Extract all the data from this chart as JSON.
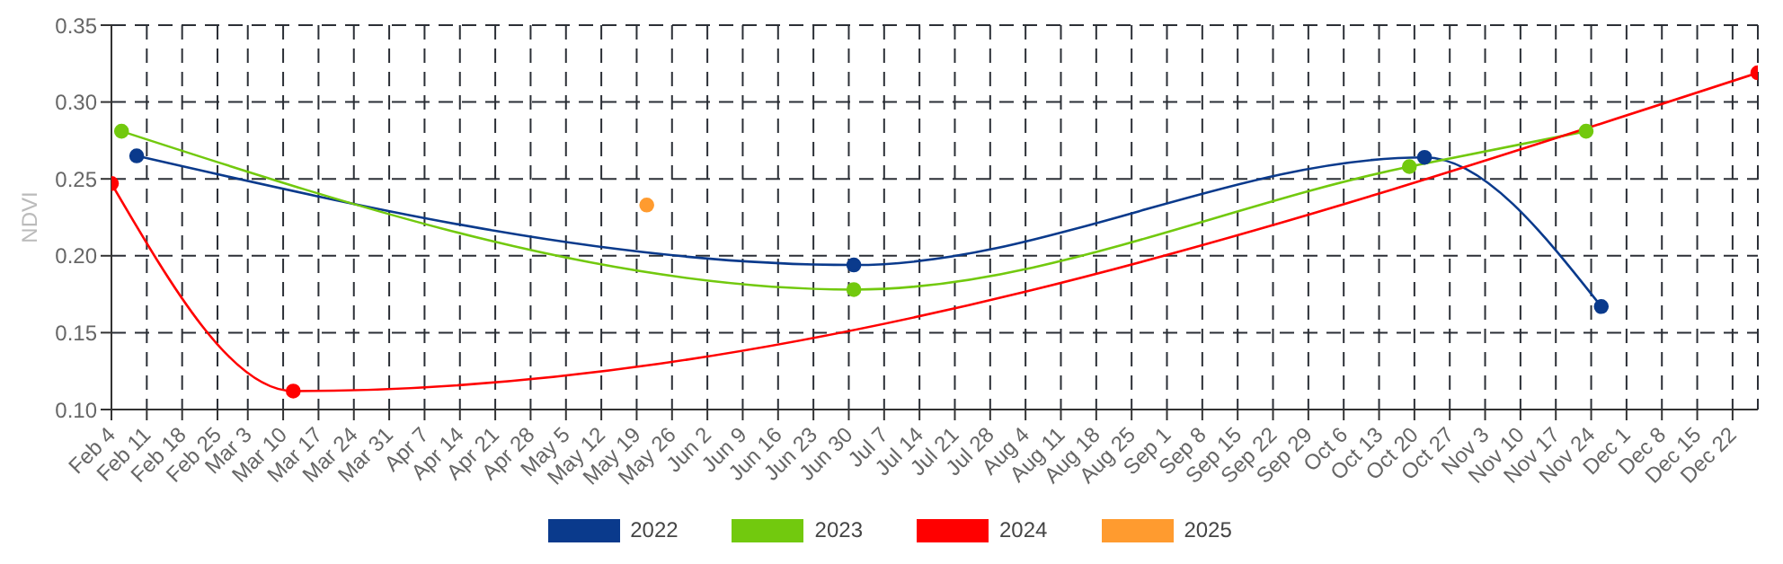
{
  "chart_data": {
    "type": "line",
    "ylabel": "NDVI",
    "xlim": [
      "--02-04",
      "--12-27"
    ],
    "xticks": [
      {
        "value": "--02-04",
        "label": "Feb 4"
      },
      {
        "value": "--02-11",
        "label": "Feb 11"
      },
      {
        "value": "--02-18",
        "label": "Feb 18"
      },
      {
        "value": "--02-25",
        "label": "Feb 25"
      },
      {
        "value": "--03-03",
        "label": "Mar 3"
      },
      {
        "value": "--03-10",
        "label": "Mar 10"
      },
      {
        "value": "--03-17",
        "label": "Mar 17"
      },
      {
        "value": "--03-24",
        "label": "Mar 24"
      },
      {
        "value": "--03-31",
        "label": "Mar 31"
      },
      {
        "value": "--04-07",
        "label": "Apr 7"
      },
      {
        "value": "--04-14",
        "label": "Apr 14"
      },
      {
        "value": "--04-21",
        "label": "Apr 21"
      },
      {
        "value": "--04-28",
        "label": "Apr 28"
      },
      {
        "value": "--05-05",
        "label": "May 5"
      },
      {
        "value": "--05-12",
        "label": "May 12"
      },
      {
        "value": "--05-19",
        "label": "May 19"
      },
      {
        "value": "--05-26",
        "label": "May 26"
      },
      {
        "value": "--06-02",
        "label": "Jun 2"
      },
      {
        "value": "--06-09",
        "label": "Jun 9"
      },
      {
        "value": "--06-16",
        "label": "Jun 16"
      },
      {
        "value": "--06-23",
        "label": "Jun 23"
      },
      {
        "value": "--06-30",
        "label": "Jun 30"
      },
      {
        "value": "--07-07",
        "label": "Jul 7"
      },
      {
        "value": "--07-14",
        "label": "Jul 14"
      },
      {
        "value": "--07-21",
        "label": "Jul 21"
      },
      {
        "value": "--07-28",
        "label": "Jul 28"
      },
      {
        "value": "--08-04",
        "label": "Aug 4"
      },
      {
        "value": "--08-11",
        "label": "Aug 11"
      },
      {
        "value": "--08-18",
        "label": "Aug 18"
      },
      {
        "value": "--08-25",
        "label": "Aug 25"
      },
      {
        "value": "--09-01",
        "label": "Sep 1"
      },
      {
        "value": "--09-08",
        "label": "Sep 8"
      },
      {
        "value": "--09-15",
        "label": "Sep 15"
      },
      {
        "value": "--09-22",
        "label": "Sep 22"
      },
      {
        "value": "--09-29",
        "label": "Sep 29"
      },
      {
        "value": "--10-06",
        "label": "Oct 6"
      },
      {
        "value": "--10-13",
        "label": "Oct 13"
      },
      {
        "value": "--10-20",
        "label": "Oct 20"
      },
      {
        "value": "--10-27",
        "label": "Oct 27"
      },
      {
        "value": "--11-03",
        "label": "Nov 3"
      },
      {
        "value": "--11-10",
        "label": "Nov 10"
      },
      {
        "value": "--11-17",
        "label": "Nov 17"
      },
      {
        "value": "--11-24",
        "label": "Nov 24"
      },
      {
        "value": "--12-01",
        "label": "Dec 1"
      },
      {
        "value": "--12-08",
        "label": "Dec 8"
      },
      {
        "value": "--12-15",
        "label": "Dec 15"
      },
      {
        "value": "--12-22",
        "label": "Dec 22"
      }
    ],
    "ylim": [
      0.1,
      0.35
    ],
    "yticks": [
      {
        "value": 0.1,
        "label": "0.10"
      },
      0.15,
      {
        "value": 0.2,
        "label": "0.20"
      },
      0.25,
      {
        "value": 0.3,
        "label": "0.30"
      },
      0.35
    ],
    "grid": true,
    "legend": "bottom",
    "marker": "circle",
    "line_style": "solid",
    "series": [
      {
        "name": "2022",
        "color": "#0a3a8c",
        "x": [
          "--02-09",
          "--07-01",
          "--10-22",
          "--11-26"
        ],
        "values": [
          0.265,
          0.194,
          0.264,
          0.167
        ]
      },
      {
        "name": "2023",
        "color": "#72c90e",
        "x": [
          "--02-06",
          "--07-01",
          "--10-19",
          "--11-23"
        ],
        "values": [
          0.281,
          0.178,
          0.258,
          0.281
        ]
      },
      {
        "name": "2024",
        "color": "#ff0000",
        "x": [
          "--02-04",
          "--03-12",
          "--12-27"
        ],
        "values": [
          0.247,
          0.112,
          0.319
        ]
      },
      {
        "name": "2025",
        "color": "#ff9b2f",
        "x": [
          "--05-21"
        ],
        "values": [
          0.233
        ]
      }
    ]
  }
}
